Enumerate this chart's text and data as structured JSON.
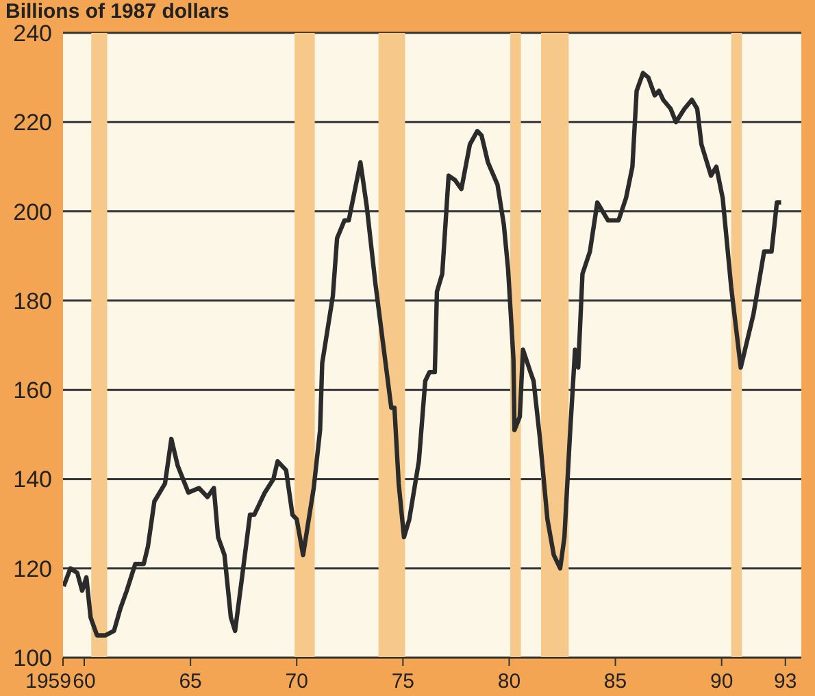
{
  "chart_data": {
    "type": "line",
    "ylabel": "Billions of 1987 dollars",
    "x": [
      1959.03,
      1959.35,
      1959.67,
      1959.9,
      1960.1,
      1960.3,
      1960.6,
      1961.0,
      1961.4,
      1961.7,
      1962.0,
      1962.4,
      1962.8,
      1963.0,
      1963.3,
      1963.8,
      1964.1,
      1964.4,
      1964.9,
      1965.4,
      1965.8,
      1966.1,
      1966.3,
      1966.6,
      1966.9,
      1967.1,
      1967.4,
      1967.8,
      1968.0,
      1968.5,
      1968.9,
      1969.1,
      1969.5,
      1969.8,
      1970.0,
      1970.3,
      1970.8,
      1971.1,
      1971.2,
      1971.7,
      1971.9,
      1972.25,
      1972.45,
      1973.0,
      1973.3,
      1973.7,
      1974.45,
      1974.6,
      1974.8,
      1975.05,
      1975.3,
      1975.75,
      1976.05,
      1976.25,
      1976.5,
      1976.6,
      1976.85,
      1977.15,
      1977.45,
      1977.75,
      1978.15,
      1978.5,
      1978.7,
      1979.0,
      1979.45,
      1979.75,
      1979.95,
      1980.2,
      1980.25,
      1980.5,
      1980.65,
      1981.0,
      1981.15,
      1981.45,
      1981.8,
      1982.1,
      1982.4,
      1982.6,
      1982.85,
      1983.1,
      1983.25,
      1983.45,
      1983.8,
      1984.15,
      1984.65,
      1985.15,
      1985.5,
      1985.8,
      1986.0,
      1986.3,
      1986.55,
      1986.85,
      1987.05,
      1987.25,
      1987.6,
      1987.85,
      1988.25,
      1988.6,
      1988.85,
      1989.05,
      1989.5,
      1989.75,
      1990.05,
      1990.45,
      1990.85,
      1990.9,
      1991.5,
      1992.0,
      1992.35,
      1992.6,
      1992.8
    ],
    "series": [
      {
        "color": "#2b2b2b",
        "values": [
          116,
          120,
          119,
          115,
          118,
          109,
          105,
          105,
          106,
          111,
          115,
          121,
          121,
          125,
          135,
          139,
          149,
          143,
          137,
          138,
          136,
          138,
          127,
          123,
          109,
          106,
          117,
          132,
          132,
          137,
          140,
          144,
          142,
          132,
          131,
          123,
          138,
          151,
          166,
          181,
          194,
          198,
          198,
          211,
          201,
          184,
          156,
          156,
          139,
          127,
          131,
          144,
          162,
          164,
          164,
          182,
          186,
          208,
          207,
          205,
          215,
          218,
          217,
          211,
          206,
          197,
          187,
          167,
          151,
          154,
          169,
          164,
          162,
          149,
          131,
          123,
          120,
          127,
          149,
          169,
          165,
          186,
          191,
          202,
          198,
          198,
          203,
          210,
          227,
          231,
          230,
          226,
          227,
          225,
          223,
          220,
          223,
          225,
          223,
          215,
          208,
          210,
          203,
          183,
          167,
          165,
          177,
          191,
          191,
          202,
          202
        ]
      }
    ],
    "xlim": [
      1959,
      1993.75
    ],
    "xticks": [
      1959,
      {
        "value": 1960,
        "label": "60"
      },
      {
        "value": 1965,
        "label": "65"
      },
      {
        "value": 1970,
        "label": "70"
      },
      {
        "value": 1975,
        "label": "75"
      },
      {
        "value": 1980,
        "label": "80"
      },
      {
        "value": 1985,
        "label": "85"
      },
      {
        "value": 1990,
        "label": "90"
      },
      {
        "value": 1993,
        "label": "93"
      }
    ],
    "ylim": [
      100,
      240
    ],
    "yticks": [
      100,
      120,
      140,
      160,
      180,
      200,
      220,
      240
    ],
    "grid": "y",
    "bands": [
      {
        "axis": "x",
        "from": 1960.33,
        "to": 1961.08,
        "color": "#f6c98a"
      },
      {
        "axis": "x",
        "from": 1969.9,
        "to": 1970.85,
        "color": "#f6c98a"
      },
      {
        "axis": "x",
        "from": 1973.85,
        "to": 1975.1,
        "color": "#f6c98a"
      },
      {
        "axis": "x",
        "from": 1980.05,
        "to": 1980.55,
        "color": "#f6c98a"
      },
      {
        "axis": "x",
        "from": 1981.5,
        "to": 1982.8,
        "color": "#f6c98a"
      },
      {
        "axis": "x",
        "from": 1990.45,
        "to": 1990.95,
        "color": "#f6c98a"
      }
    ]
  }
}
